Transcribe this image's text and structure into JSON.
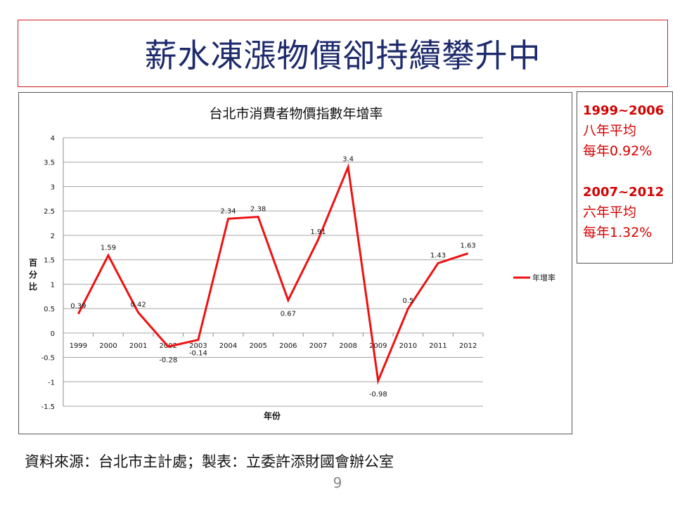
{
  "slide": {
    "title": "薪水凍漲物價卻持續攀升中",
    "source": "資料來源：台北市主計處；製表：立委許添財國會辦公室",
    "page_number": "9"
  },
  "notes": [
    {
      "period": "1999~2006",
      "line1": "八年平均",
      "line2": "每年0.92%"
    },
    {
      "period": "2007~2012",
      "line1": "六年平均",
      "line2": "每年1.32%"
    }
  ],
  "colors": {
    "line": "#ee1111",
    "note_text": "#d40000",
    "title_text": "#1d2a6b",
    "title_border": "#d21a1a"
  },
  "chart_data": {
    "type": "line",
    "title": "台北市消費者物價指數年增率",
    "xlabel": "年份",
    "ylabel": "百分比",
    "ylim": [
      -1.5,
      4
    ],
    "yticks": [
      "4",
      "3.5",
      "3",
      "2.5",
      "2",
      "1.5",
      "1",
      "0.5",
      "0",
      "-0.5",
      "-1",
      "-1.5"
    ],
    "grid": true,
    "legend": "right",
    "categories": [
      "1999",
      "2000",
      "2001",
      "2002",
      "2003",
      "2004",
      "2005",
      "2006",
      "2007",
      "2008",
      "2009",
      "2010",
      "2011",
      "2012"
    ],
    "series": [
      {
        "name": "年增率",
        "values": [
          0.39,
          1.59,
          0.42,
          -0.28,
          -0.14,
          2.34,
          2.38,
          0.67,
          1.91,
          3.4,
          -0.98,
          0.5,
          1.43,
          1.63
        ],
        "labels": [
          "0.39",
          "1.59",
          "0.42",
          "-0.28",
          "-0.14",
          "2.34",
          "2.38",
          "0.67",
          "1.91",
          "3.4",
          "-0.98",
          "0.5",
          "1.43",
          "1.63"
        ]
      }
    ]
  }
}
